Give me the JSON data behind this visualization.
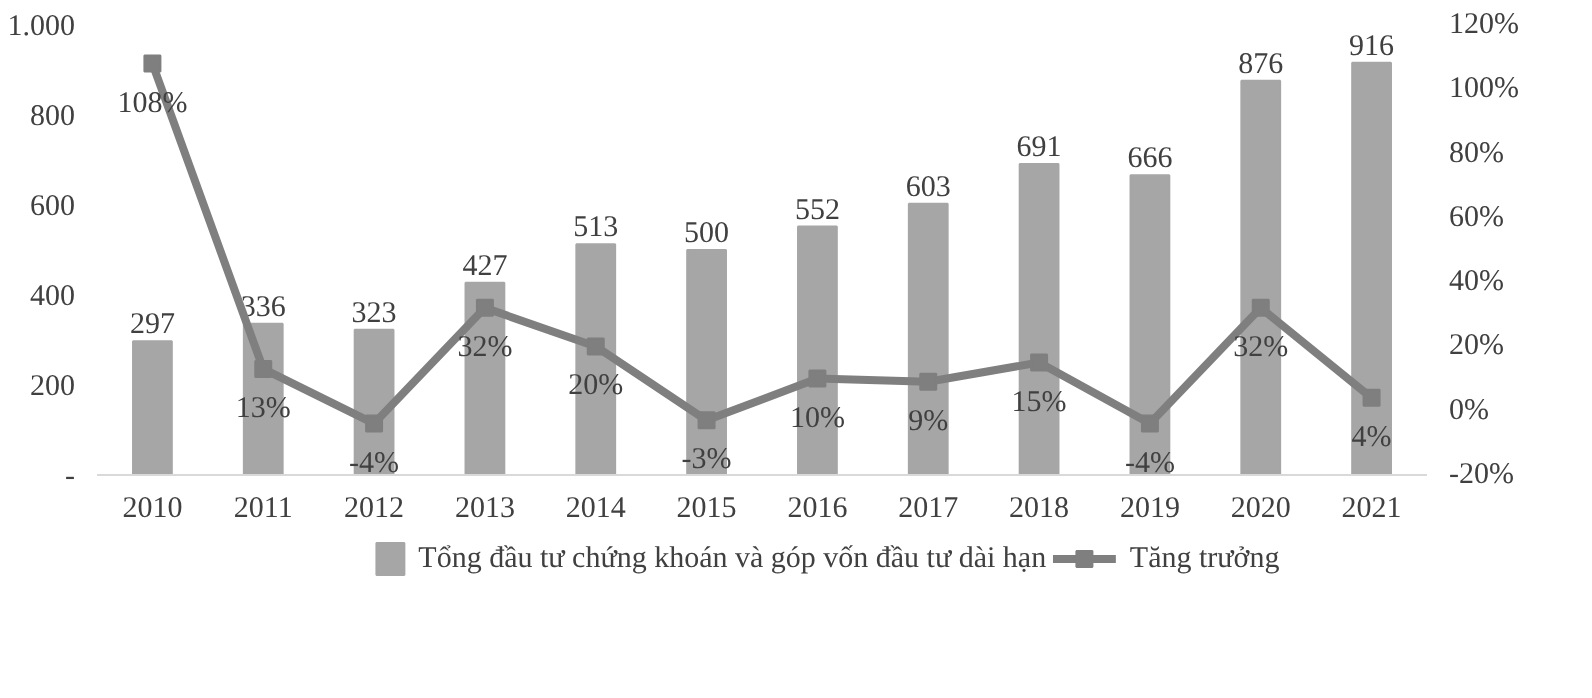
{
  "chart_data": {
    "type": "bar",
    "categories": [
      "2010",
      "2011",
      "2012",
      "2013",
      "2014",
      "2015",
      "2016",
      "2017",
      "2018",
      "2019",
      "2020",
      "2021"
    ],
    "series": [
      {
        "name": "Tổng đầu tư chứng khoán và góp vốn đầu tư dài hạn",
        "color": "#a6a6a6",
        "type": "bar",
        "values": [
          297,
          336,
          323,
          427,
          513,
          500,
          552,
          603,
          691,
          666,
          876,
          916
        ],
        "value_labels": [
          "297",
          "336",
          "323",
          "427",
          "513",
          "500",
          "552",
          "603",
          "691",
          "666",
          "876",
          "916"
        ]
      },
      {
        "name": "Tăng trưởng",
        "color": "#7f7f7f",
        "type": "line",
        "axis": "y2",
        "marker": "square",
        "values": [
          108,
          13,
          -4,
          32,
          20,
          -3,
          10,
          9,
          15,
          -4,
          32,
          4
        ],
        "value_labels": [
          "108%",
          "13%",
          "-4%",
          "32%",
          "20%",
          "-3%",
          "10%",
          "9%",
          "15%",
          "-4%",
          "32%",
          "4%"
        ]
      }
    ],
    "ylim": [
      0,
      1000
    ],
    "yticks": [
      {
        "value": 0,
        "label": "-"
      },
      200,
      400,
      600,
      800,
      {
        "value": 1000,
        "label": "1.000"
      }
    ],
    "y2lim": [
      -20,
      120
    ],
    "y2ticks": [
      {
        "value": -20,
        "label": "-20%"
      },
      {
        "value": 0,
        "label": "0%"
      },
      {
        "value": 20,
        "label": "20%"
      },
      {
        "value": 40,
        "label": "40%"
      },
      {
        "value": 60,
        "label": "60%"
      },
      {
        "value": 80,
        "label": "80%"
      },
      {
        "value": 100,
        "label": "100%"
      },
      {
        "value": 120,
        "label": "120%"
      }
    ],
    "legend": "bottom",
    "grid": false
  }
}
